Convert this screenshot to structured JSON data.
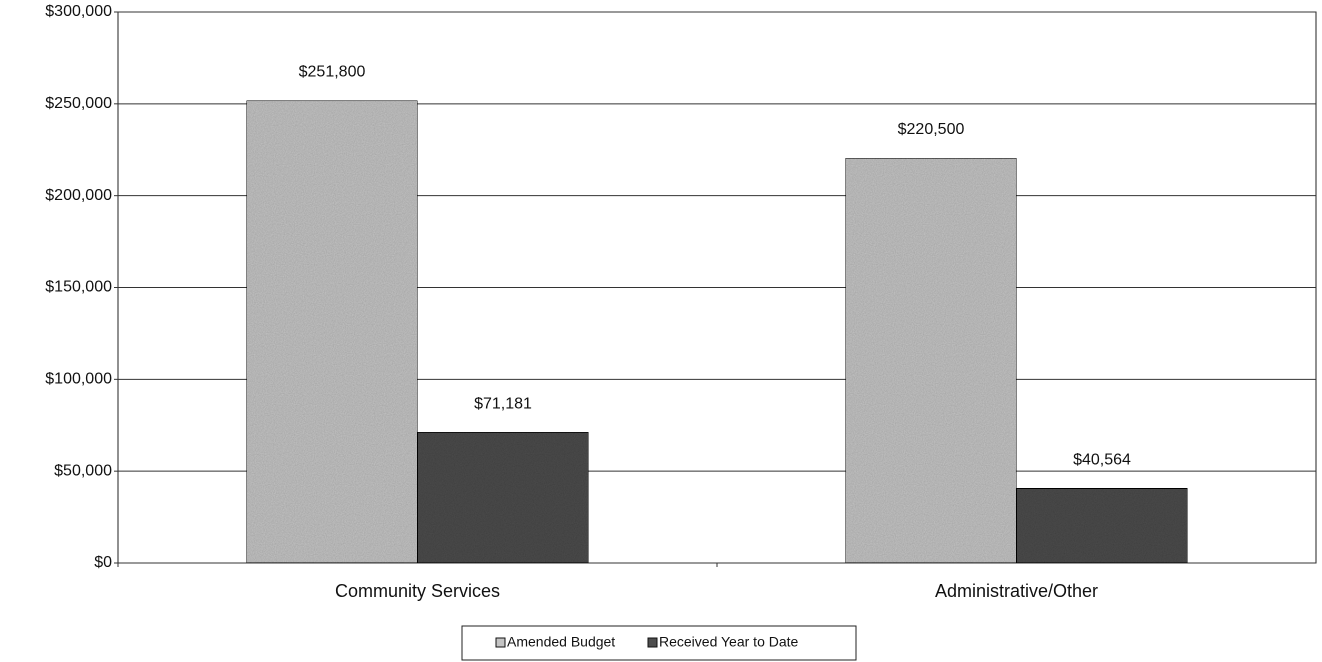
{
  "chart_data": {
    "type": "bar",
    "categories": [
      "Community Services",
      "Administrative/Other"
    ],
    "series": [
      {
        "name": "Amended Budget",
        "color": "#c4c4c4",
        "values": [
          251800,
          220500
        ],
        "value_labels": [
          "$251,800",
          "$220,500"
        ]
      },
      {
        "name": "Received Year to Date",
        "color": "#4e4e4e",
        "values": [
          71181,
          40564
        ],
        "value_labels": [
          "$71,181",
          "$40,564"
        ]
      }
    ],
    "ylim": [
      0,
      300000
    ],
    "yticks": [
      {
        "value": 0,
        "label": "$0"
      },
      {
        "value": 50000,
        "label": "$50,000"
      },
      {
        "value": 100000,
        "label": "$100,000"
      },
      {
        "value": 150000,
        "label": "$150,000"
      },
      {
        "value": 200000,
        "label": "$200,000"
      },
      {
        "value": 250000,
        "label": "$250,000"
      },
      {
        "value": 300000,
        "label": "$300,000"
      }
    ],
    "grid": true,
    "legend": "bottom"
  }
}
